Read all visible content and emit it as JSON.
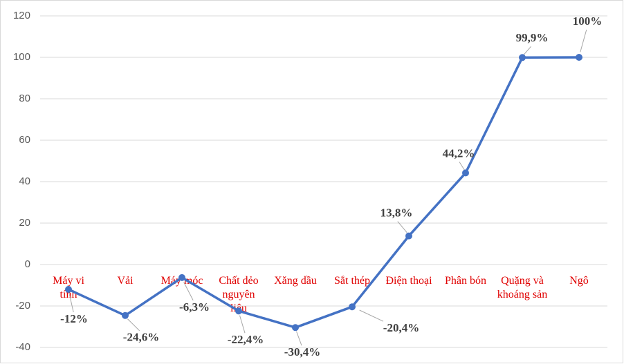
{
  "chart_data": {
    "type": "line",
    "categories": [
      "Máy vi tính",
      "Vải",
      "Máy móc",
      "Chất dẻo nguyên liệu",
      "Xăng dầu",
      "Sắt thép",
      "Điện thoại",
      "Phân bón",
      "Quặng và khoáng sản",
      "Ngô"
    ],
    "series": [
      {
        "color": "#4472c4",
        "values": [
          -12,
          -24.6,
          -6.3,
          -22.4,
          -30.4,
          -20.4,
          13.8,
          44.2,
          99.9,
          100
        ],
        "value_labels": [
          "-12%",
          "-24,6%",
          "-6,3%",
          "-22,4%",
          "-30,4%",
          "-20,4%",
          "13,8%",
          "44,2%",
          "99,9%",
          "100%"
        ]
      }
    ],
    "ylim": [
      -40,
      120
    ],
    "yticks": [
      -40,
      -20,
      0,
      20,
      40,
      60,
      80,
      100,
      120
    ],
    "grid": true
  }
}
